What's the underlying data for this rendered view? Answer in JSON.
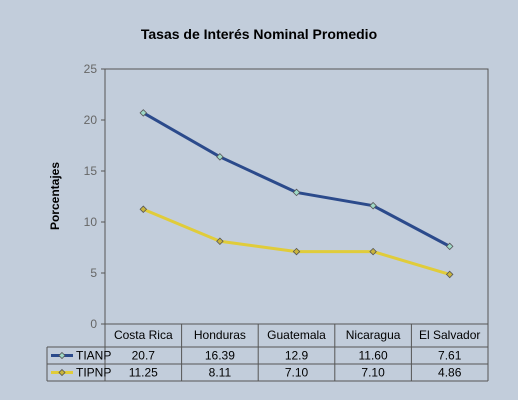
{
  "chart_data": {
    "type": "line",
    "title": "Tasas de Interés Nominal Promedio",
    "xlabel": "",
    "ylabel": "Porcentajes",
    "ylim": [
      0,
      25
    ],
    "yticks": [
      0,
      5,
      10,
      15,
      20,
      25
    ],
    "grid": false,
    "legend": "data table below plot",
    "categories": [
      "Costa Rica",
      "Honduras",
      "Guatemala",
      "Nicaragua",
      "El Salvador"
    ],
    "series": [
      {
        "name": "TIANP",
        "color": "#2b4a8b",
        "marker_fill": "#9ed8c6",
        "values": [
          20.7,
          16.39,
          12.9,
          11.6,
          7.61
        ],
        "labels": [
          "20.7",
          "16.39",
          "12.9",
          "11.60",
          "7.61"
        ]
      },
      {
        "name": "TIPNP",
        "color": "#e0cc3a",
        "marker_fill": "#c9b43c",
        "values": [
          11.25,
          8.11,
          7.1,
          7.1,
          4.86
        ],
        "labels": [
          "11.25",
          "8.11",
          "7.10",
          "7.10",
          "4.86"
        ]
      }
    ]
  }
}
